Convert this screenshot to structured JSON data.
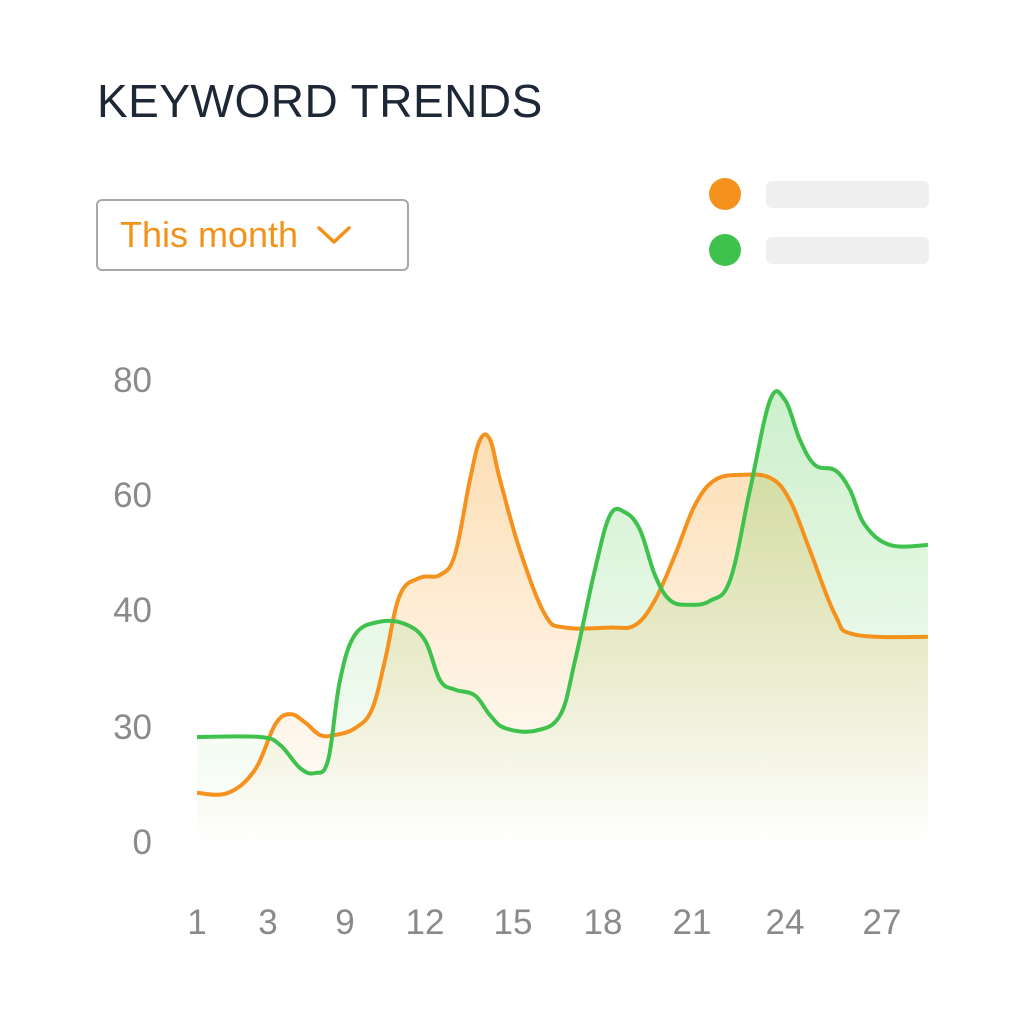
{
  "title": "KEYWORD TRENDS",
  "dropdown": {
    "selected": "This month"
  },
  "legend": [
    {
      "color": "#f5921e"
    },
    {
      "color": "#3fc24d"
    }
  ],
  "chart_data": {
    "type": "line",
    "title": "KEYWORD TRENDS",
    "xlabel": "",
    "ylabel": "",
    "x_ticks": [
      1,
      3,
      9,
      12,
      15,
      18,
      21,
      24,
      27
    ],
    "y_ticks": [
      0,
      30,
      40,
      60,
      80
    ],
    "x_tick_labels": [
      "1",
      "3",
      "9",
      "12",
      "15",
      "18",
      "21",
      "24",
      "27"
    ],
    "y_tick_labels": [
      "0",
      "30",
      "40",
      "60",
      "80"
    ],
    "grid": false,
    "legend_position": "top-right",
    "series": [
      {
        "name": "orange",
        "color": "#f5921e",
        "points": [
          [
            1,
            12.8
          ],
          [
            1.87,
            12.8
          ],
          [
            2.63,
            18.8
          ],
          [
            3.55,
            30.2
          ],
          [
            4.71,
            31.1
          ],
          [
            5.88,
            30.4
          ],
          [
            7.05,
            27.9
          ],
          [
            8.22,
            27.9
          ],
          [
            9.38,
            29.7
          ],
          [
            10.01,
            31.5
          ],
          [
            10.5,
            35.7
          ],
          [
            11.06,
            42.6
          ],
          [
            11.81,
            45.6
          ],
          [
            12.51,
            46.1
          ],
          [
            13.02,
            49.6
          ],
          [
            13.53,
            62.6
          ],
          [
            13.88,
            69.6
          ],
          [
            14.22,
            69.6
          ],
          [
            14.56,
            62.6
          ],
          [
            15.23,
            50.4
          ],
          [
            16.07,
            39.6
          ],
          [
            16.73,
            38.5
          ],
          [
            18.24,
            38.5
          ],
          [
            19.08,
            38.7
          ],
          [
            19.75,
            41.7
          ],
          [
            20.43,
            49.6
          ],
          [
            21.1,
            58.3
          ],
          [
            21.74,
            62.6
          ],
          [
            22.55,
            63.5
          ],
          [
            23.52,
            63.0
          ],
          [
            24.15,
            59.1
          ],
          [
            24.77,
            50.4
          ],
          [
            25.55,
            39.6
          ],
          [
            26.16,
            37.9
          ],
          [
            28.42,
            37.7
          ]
        ]
      },
      {
        "name": "green",
        "color": "#3fc24d",
        "points": [
          [
            1,
            27.4
          ],
          [
            2.77,
            27.4
          ],
          [
            3.94,
            25.3
          ],
          [
            5.49,
            19.3
          ],
          [
            6.66,
            18.0
          ],
          [
            7.68,
            21.4
          ],
          [
            8.61,
            34.0
          ],
          [
            9.38,
            37.9
          ],
          [
            10.31,
            39.0
          ],
          [
            11.25,
            38.8
          ],
          [
            12,
            37.4
          ],
          [
            12.51,
            34.0
          ],
          [
            13.02,
            33.2
          ],
          [
            13.7,
            32.7
          ],
          [
            14.22,
            31.0
          ],
          [
            14.73,
            29.7
          ],
          [
            15.73,
            29.0
          ],
          [
            16.57,
            31.0
          ],
          [
            17.07,
            35.7
          ],
          [
            17.73,
            47.0
          ],
          [
            18.24,
            56.5
          ],
          [
            18.74,
            57.0
          ],
          [
            19.25,
            53.9
          ],
          [
            19.75,
            46.1
          ],
          [
            20.26,
            41.7
          ],
          [
            20.93,
            40.9
          ],
          [
            21.58,
            41.6
          ],
          [
            22.23,
            45.2
          ],
          [
            22.87,
            60.9
          ],
          [
            23.52,
            76.5
          ],
          [
            24,
            76.5
          ],
          [
            24.46,
            69.6
          ],
          [
            24.93,
            65.2
          ],
          [
            25.55,
            64.3
          ],
          [
            26.01,
            60.9
          ],
          [
            26.47,
            54.8
          ],
          [
            27.25,
            51.3
          ],
          [
            28.42,
            51.3
          ]
        ]
      }
    ]
  }
}
